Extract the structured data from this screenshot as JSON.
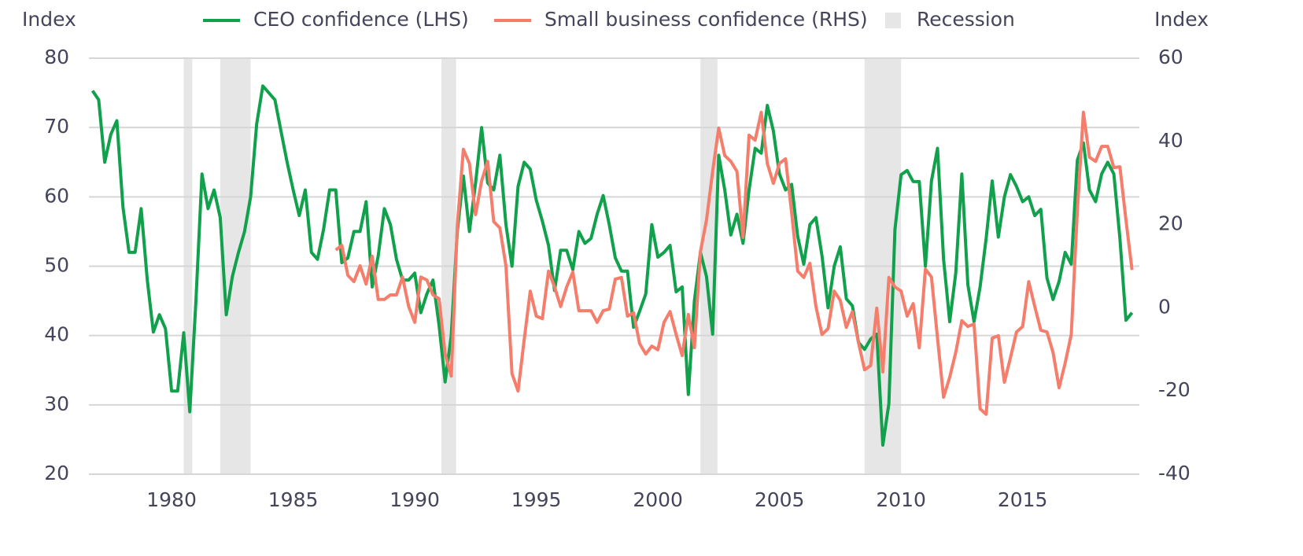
{
  "chart_data": {
    "type": "line",
    "y_label": "Index",
    "y2_label": "Index",
    "x": [
      1976.75,
      1977,
      1977.25,
      1977.5,
      1977.75,
      1978,
      1978.25,
      1978.5,
      1978.75,
      1979,
      1979.25,
      1979.5,
      1979.75,
      1980,
      1980.25,
      1980.5,
      1980.75,
      1981,
      1981.25,
      1981.5,
      1981.75,
      1982,
      1982.25,
      1982.5,
      1982.75,
      1983,
      1983.25,
      1983.5,
      1983.75,
      1984,
      1984.25,
      1984.5,
      1984.75,
      1985,
      1985.25,
      1985.5,
      1985.75,
      1986,
      1986.25,
      1986.5,
      1986.75,
      1987,
      1987.25,
      1987.5,
      1987.75,
      1988,
      1988.25,
      1988.5,
      1988.75,
      1989,
      1989.25,
      1989.5,
      1989.75,
      1990,
      1990.25,
      1990.5,
      1990.75,
      1991,
      1991.25,
      1991.5,
      1991.75,
      1992,
      1992.25,
      1992.5,
      1992.75,
      1993,
      1993.25,
      1993.5,
      1993.75,
      1994,
      1994.25,
      1994.5,
      1994.75,
      1995,
      1995.25,
      1995.5,
      1995.75,
      1996,
      1996.25,
      1996.5,
      1996.75,
      1997,
      1997.25,
      1997.5,
      1997.75,
      1998,
      1998.25,
      1998.5,
      1998.75,
      1999,
      1999.25,
      1999.5,
      1999.75,
      2000,
      2000.25,
      2000.5,
      2000.75,
      2001,
      2001.25,
      2001.5,
      2001.75,
      2002,
      2002.25,
      2002.5,
      2002.75,
      2003,
      2003.25,
      2003.5,
      2003.75,
      2004,
      2004.25,
      2004.5,
      2004.75,
      2005,
      2005.25,
      2005.5,
      2005.75,
      2006,
      2006.25,
      2006.5,
      2006.75,
      2007,
      2007.25,
      2007.5,
      2007.75,
      2008,
      2008.25,
      2008.5,
      2008.75,
      2009,
      2009.25,
      2009.5,
      2009.75,
      2010,
      2010.25,
      2010.5,
      2010.75,
      2011,
      2011.25,
      2011.5,
      2011.75,
      2012,
      2012.25,
      2012.5,
      2012.75,
      2013,
      2013.25,
      2013.5,
      2013.75,
      2014,
      2014.25,
      2014.5,
      2014.75,
      2015,
      2015.25,
      2015.5,
      2015.75,
      2016,
      2016.25,
      2016.5,
      2016.75,
      2017,
      2017.25,
      2017.5,
      2017.75,
      2018,
      2018.25,
      2018.5,
      2018.75,
      2019,
      2019.25,
      2019.5
    ],
    "series": [
      {
        "name": "CEO confidence (LHS)",
        "color": "#11a04b",
        "axis": "y",
        "values": [
          75.3,
          74,
          65,
          69,
          71,
          58.5,
          52,
          52,
          58.3,
          48,
          40.5,
          43,
          41,
          32,
          32,
          40.4,
          29,
          45,
          63.3,
          58.3,
          61,
          57,
          43,
          48.5,
          52,
          55,
          60,
          70.5,
          76,
          75,
          74,
          69.5,
          65,
          61,
          57.3,
          61,
          52,
          51,
          55.3,
          61,
          61,
          50.5,
          51.2,
          55,
          55,
          59.3,
          47,
          51.5,
          58.3,
          56,
          51,
          48,
          48,
          49,
          43.3,
          46,
          48,
          41.5,
          33.3,
          40,
          55,
          63,
          55,
          62,
          70,
          62,
          61,
          66,
          56,
          50,
          61.5,
          65,
          64,
          59.5,
          56.5,
          53,
          46.5,
          52.3,
          52.3,
          49.5,
          55,
          53.3,
          54,
          57.5,
          60.2,
          56,
          51.2,
          49.3,
          49.3,
          41.2,
          43.5,
          46,
          56,
          51.3,
          52,
          53,
          46.3,
          47,
          31.5,
          45,
          52,
          48.5,
          40.2,
          66,
          61,
          54.5,
          57.5,
          53.3,
          61,
          67,
          66.3,
          73.2,
          69.5,
          63.3,
          61,
          61.8,
          54.3,
          50.3,
          56,
          57,
          51.5,
          44,
          50,
          52.8,
          45.3,
          44.3,
          39,
          38,
          39.5,
          40.2,
          24.2,
          30.2,
          55.3,
          63.2,
          63.8,
          62.2,
          62.2,
          50,
          62.3,
          67,
          51,
          42,
          49,
          63.3,
          47.3,
          42,
          47,
          54,
          62.3,
          54.2,
          60,
          63.2,
          61.5,
          59.3,
          60,
          57.3,
          58.2,
          48.3,
          45.2,
          47.8,
          52,
          50.3,
          65.3,
          67.8,
          61,
          59.3,
          63.3,
          65,
          63.3,
          54,
          42.2,
          43.3
        ]
      },
      {
        "name": "Small business confidence (RHS)",
        "color": "#f47d6b",
        "axis": "y2",
        "values": [
          null,
          null,
          null,
          null,
          null,
          null,
          null,
          null,
          null,
          null,
          null,
          null,
          null,
          null,
          null,
          null,
          null,
          null,
          null,
          null,
          null,
          null,
          null,
          null,
          null,
          null,
          null,
          null,
          null,
          null,
          null,
          null,
          null,
          null,
          null,
          null,
          null,
          null,
          null,
          null,
          13.9,
          15,
          7.8,
          6.3,
          10.1,
          5.7,
          12.4,
          2,
          2,
          3.1,
          3.1,
          7.4,
          0.3,
          -3.5,
          7.4,
          6.7,
          3.1,
          2.2,
          -11.1,
          -16.4,
          19.7,
          38.1,
          34.7,
          22.4,
          30.5,
          35.2,
          20.7,
          19.2,
          10.1,
          -15.8,
          -20,
          -7.7,
          4,
          -2,
          -2.6,
          8.8,
          5,
          0.3,
          5,
          8.6,
          -0.7,
          -0.7,
          -0.7,
          -3.5,
          -0.7,
          -0.3,
          6.9,
          7.3,
          -2,
          -1.2,
          -8.6,
          -11.1,
          -9.2,
          -10.1,
          -3.5,
          -0.9,
          -6.4,
          -11.5,
          -1.6,
          -9.6,
          13.5,
          21.1,
          32.8,
          43.2,
          36.6,
          35.2,
          32.8,
          16.9,
          41.5,
          40.3,
          47,
          34.7,
          29.9,
          34.7,
          35.8,
          22.9,
          8.8,
          7.3,
          10.7,
          0.3,
          -6.4,
          -5,
          4,
          1.8,
          -4.7,
          -0.9,
          -8.4,
          -14.9,
          -13.9,
          -0.1,
          -15.4,
          7.3,
          5,
          4,
          -2,
          1,
          -9.6,
          9.3,
          7.4,
          -7.3,
          -21.5,
          -16.7,
          -10.7,
          -3.1,
          -4.5,
          -3.9,
          -24.3,
          -25.6,
          -7.3,
          -6.7,
          -17.9,
          -12,
          -5.8,
          -4.5,
          6.3,
          0.3,
          -5.4,
          -5.8,
          -10.7,
          -19.2,
          -13.3,
          -6.4,
          23.3,
          47,
          36.2,
          35.2,
          38.8,
          38.8,
          33.7,
          33.9,
          21.1,
          9.1
        ]
      }
    ],
    "recession": {
      "name": "Recession",
      "color": "#e6e6e6",
      "spans": [
        [
          1980.5,
          1980.85
        ],
        [
          1982,
          1983.25
        ],
        [
          1991.1,
          1991.7
        ],
        [
          2001.75,
          2002.45
        ],
        [
          2008.5,
          2010
        ]
      ]
    },
    "xlim": [
      1976.6,
      2019.8
    ],
    "xticks": [
      1980,
      1985,
      1990,
      1995,
      2000,
      2005,
      2010,
      2015
    ],
    "ylim": [
      20,
      80
    ],
    "yticks": [
      20,
      30,
      40,
      50,
      60,
      70,
      80
    ],
    "y2lim": [
      -40,
      60
    ],
    "y2ticks": [
      -40,
      -20,
      0,
      20,
      40,
      60
    ],
    "grid": true
  }
}
